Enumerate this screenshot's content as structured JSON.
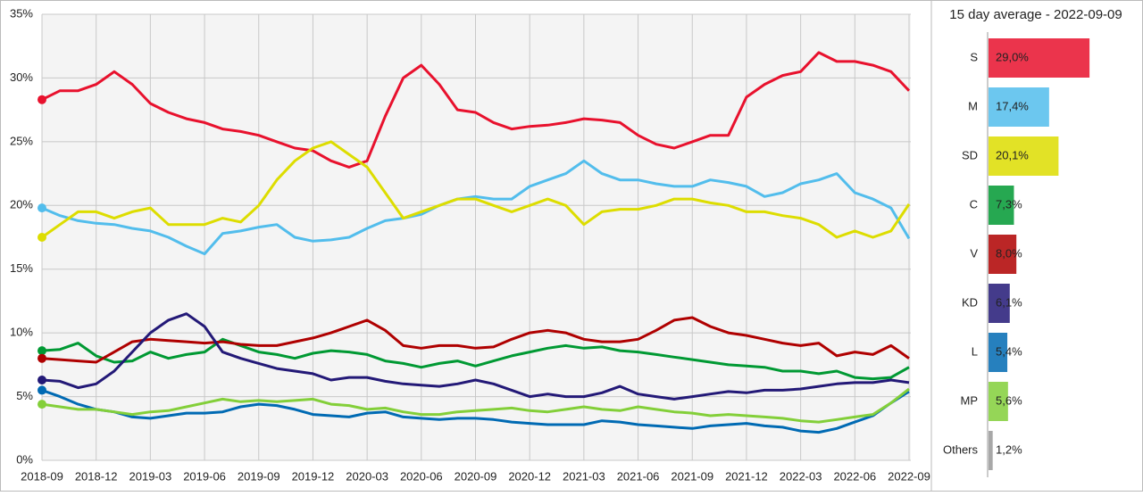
{
  "chart_data": [
    {
      "type": "line",
      "x": [
        "2018-09",
        "2018-10",
        "2018-11",
        "2018-12",
        "2019-01",
        "2019-02",
        "2019-03",
        "2019-04",
        "2019-05",
        "2019-06",
        "2019-07",
        "2019-08",
        "2019-09",
        "2019-10",
        "2019-11",
        "2019-12",
        "2020-01",
        "2020-02",
        "2020-03",
        "2020-04",
        "2020-05",
        "2020-06",
        "2020-07",
        "2020-08",
        "2020-09",
        "2020-10",
        "2020-11",
        "2020-12",
        "2021-01",
        "2021-02",
        "2021-03",
        "2021-04",
        "2021-05",
        "2021-06",
        "2021-07",
        "2021-08",
        "2021-09",
        "2021-10",
        "2021-11",
        "2021-12",
        "2022-01",
        "2022-02",
        "2022-03",
        "2022-04",
        "2022-05",
        "2022-06",
        "2022-07",
        "2022-08",
        "2022-09"
      ],
      "xlim": [
        "2018-09",
        "2022-09"
      ],
      "xticks": [
        "2018-09",
        "2018-12",
        "2019-03",
        "2019-06",
        "2019-09",
        "2019-12",
        "2020-03",
        "2020-06",
        "2020-09",
        "2020-12",
        "2021-03",
        "2021-06",
        "2021-09",
        "2021-12",
        "2022-03",
        "2022-06",
        "2022-09"
      ],
      "ylim": [
        0,
        35
      ],
      "yticks": [
        {
          "value": 0,
          "label": "0%"
        },
        {
          "value": 5,
          "label": "5%"
        },
        {
          "value": 10,
          "label": "10%"
        },
        {
          "value": 15,
          "label": "15%"
        },
        {
          "value": 20,
          "label": "20%"
        },
        {
          "value": 25,
          "label": "25%"
        },
        {
          "value": 30,
          "label": "30%"
        },
        {
          "value": 35,
          "label": "35%"
        }
      ],
      "grid": true,
      "series": [
        {
          "color": "#e8112d",
          "values": [
            28.3,
            29,
            29,
            29.5,
            30.5,
            29.5,
            28,
            27.3,
            26.8,
            26.5,
            26,
            25.8,
            25.5,
            25,
            24.5,
            24.3,
            23.5,
            23,
            23.5,
            27,
            30,
            31,
            29.5,
            27.5,
            27.3,
            26.5,
            26,
            26.2,
            26.3,
            26.5,
            26.8,
            26.7,
            26.5,
            25.5,
            24.8,
            24.5,
            25,
            25.5,
            25.5,
            28.5,
            29.5,
            30.2,
            30.5,
            32,
            31.3,
            31.3,
            31,
            30.5,
            29
          ]
        },
        {
          "color": "#52bdec",
          "values": [
            19.8,
            19.2,
            18.8,
            18.6,
            18.5,
            18.2,
            18,
            17.5,
            16.8,
            16.2,
            17.8,
            18,
            18.3,
            18.5,
            17.5,
            17.2,
            17.3,
            17.5,
            18.2,
            18.8,
            19,
            19.3,
            20,
            20.5,
            20.7,
            20.5,
            20.5,
            21.5,
            22,
            22.5,
            23.5,
            22.5,
            22,
            22,
            21.7,
            21.5,
            21.5,
            22,
            21.8,
            21.5,
            20.7,
            21,
            21.7,
            22,
            22.5,
            21,
            20.5,
            19.8,
            17.4
          ]
        },
        {
          "color": "#dddd00",
          "values": [
            17.5,
            18.5,
            19.5,
            19.5,
            19,
            19.5,
            19.8,
            18.5,
            18.5,
            18.5,
            19,
            18.7,
            20,
            22,
            23.5,
            24.5,
            25,
            24,
            23,
            21,
            19,
            19.5,
            20,
            20.5,
            20.5,
            20,
            19.5,
            20,
            20.5,
            20,
            18.5,
            19.5,
            19.7,
            19.7,
            20,
            20.5,
            20.5,
            20.2,
            20,
            19.5,
            19.5,
            19.2,
            19,
            18.5,
            17.5,
            18,
            17.5,
            18,
            20.1
          ]
        },
        {
          "color": "#009933",
          "values": [
            8.6,
            8.7,
            9.2,
            8.2,
            7.7,
            7.8,
            8.5,
            8.0,
            8.3,
            8.5,
            9.5,
            9.0,
            8.5,
            8.3,
            8.0,
            8.4,
            8.6,
            8.5,
            8.3,
            7.8,
            7.6,
            7.3,
            7.6,
            7.8,
            7.4,
            7.8,
            8.2,
            8.5,
            8.8,
            9.0,
            8.8,
            8.9,
            8.6,
            8.5,
            8.3,
            8.1,
            7.9,
            7.7,
            7.5,
            7.4,
            7.3,
            7.0,
            7.0,
            6.8,
            7.0,
            6.5,
            6.4,
            6.5,
            7.3
          ]
        },
        {
          "color": "#af0000",
          "values": [
            8.0,
            7.9,
            7.8,
            7.7,
            8.5,
            9.3,
            9.5,
            9.4,
            9.3,
            9.2,
            9.3,
            9.1,
            9.0,
            9.0,
            9.3,
            9.6,
            10.0,
            10.5,
            11.0,
            10.2,
            9.0,
            8.8,
            9.0,
            9.0,
            8.8,
            8.9,
            9.5,
            10.0,
            10.2,
            10.0,
            9.5,
            9.3,
            9.3,
            9.5,
            10.2,
            11.0,
            11.2,
            10.5,
            10.0,
            9.8,
            9.5,
            9.2,
            9.0,
            9.2,
            8.2,
            8.5,
            8.3,
            9.0,
            8.0
          ]
        },
        {
          "color": "#231977",
          "values": [
            6.3,
            6.2,
            5.7,
            6.0,
            7.0,
            8.5,
            10.0,
            11.0,
            11.5,
            10.5,
            8.5,
            8.0,
            7.6,
            7.2,
            7.0,
            6.8,
            6.3,
            6.5,
            6.5,
            6.2,
            6.0,
            5.9,
            5.8,
            6.0,
            6.3,
            6.0,
            5.5,
            5.0,
            5.2,
            5.0,
            5.0,
            5.3,
            5.8,
            5.2,
            5.0,
            4.8,
            5.0,
            5.2,
            5.4,
            5.3,
            5.5,
            5.5,
            5.6,
            5.8,
            6.0,
            6.1,
            6.1,
            6.3,
            6.1
          ]
        },
        {
          "color": "#006ab3",
          "values": [
            5.5,
            5.0,
            4.4,
            4.0,
            3.8,
            3.4,
            3.3,
            3.5,
            3.7,
            3.7,
            3.8,
            4.2,
            4.4,
            4.3,
            4.0,
            3.6,
            3.5,
            3.4,
            3.7,
            3.8,
            3.4,
            3.3,
            3.2,
            3.3,
            3.3,
            3.2,
            3.0,
            2.9,
            2.8,
            2.8,
            2.8,
            3.1,
            3.0,
            2.8,
            2.7,
            2.6,
            2.5,
            2.7,
            2.8,
            2.9,
            2.7,
            2.6,
            2.3,
            2.2,
            2.5,
            3.0,
            3.5,
            4.5,
            5.4
          ]
        },
        {
          "color": "#83cf39",
          "values": [
            4.4,
            4.2,
            4.0,
            4.0,
            3.8,
            3.6,
            3.8,
            3.9,
            4.2,
            4.5,
            4.8,
            4.6,
            4.7,
            4.6,
            4.7,
            4.8,
            4.4,
            4.3,
            4.0,
            4.1,
            3.8,
            3.6,
            3.6,
            3.8,
            3.9,
            4.0,
            4.1,
            3.9,
            3.8,
            4.0,
            4.2,
            4.0,
            3.9,
            4.2,
            4.0,
            3.8,
            3.7,
            3.5,
            3.6,
            3.5,
            3.4,
            3.3,
            3.1,
            3.0,
            3.2,
            3.4,
            3.6,
            4.5,
            5.6
          ]
        }
      ]
    },
    {
      "type": "hbar",
      "title": "15 day average - 2022-09-09",
      "categories": [
        "S",
        "M",
        "SD",
        "C",
        "V",
        "KD",
        "L",
        "MP",
        "Others"
      ],
      "values": [
        29.0,
        17.4,
        20.1,
        7.3,
        8.0,
        6.1,
        5.4,
        5.6,
        1.2
      ],
      "value_labels": [
        "29,0%",
        "17,4%",
        "20,1%",
        "7,3%",
        "8,0%",
        "6,1%",
        "5,4%",
        "5,6%",
        "1,2%"
      ],
      "colors": [
        "#e8112d",
        "#52bdec",
        "#dddd00",
        "#009933",
        "#af0000",
        "#231977",
        "#006ab3",
        "#83cf39",
        "#999999"
      ]
    }
  ]
}
